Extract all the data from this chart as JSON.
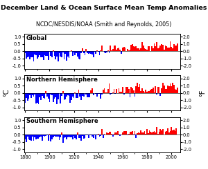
{
  "title": "December Land & Ocean Surface Mean Temp Anomalies",
  "subtitle": "NCDC/NESDIS/NOAA (Smith and Reynolds, 2005)",
  "panels": [
    "Global",
    "Northern Hemisphere",
    "Southern Hemisphere"
  ],
  "year_start": 1880,
  "year_end": 2005,
  "ylim_c": [
    -1.2,
    1.2
  ],
  "ylim_f": [
    -2.4,
    2.4
  ],
  "yticks_c": [
    -1.0,
    -0.5,
    0.0,
    0.5,
    1.0
  ],
  "yticks_f": [
    -2.0,
    -1.0,
    0.0,
    1.0,
    2.0
  ],
  "color_pos": "#FF0000",
  "color_neg": "#0000FF",
  "bg_color": "#FFFFFF",
  "title_fontsize": 6.8,
  "subtitle_fontsize": 5.8,
  "label_fontsize": 5.5,
  "tick_fontsize": 4.8,
  "panel_fontsize": 6.0,
  "ylabel_left": "°C",
  "ylabel_right": "°F",
  "xticks": [
    1880,
    1900,
    1920,
    1940,
    1960,
    1980,
    2000
  ]
}
